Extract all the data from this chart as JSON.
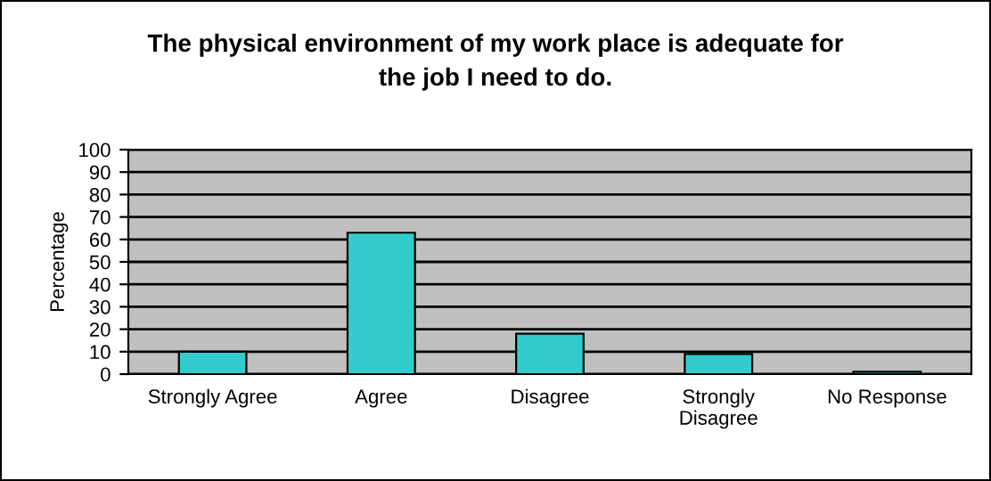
{
  "chart_data": {
    "type": "bar",
    "title": "The physical environment of my work place is adequate for\nthe job I need to do.",
    "ylabel": "Percentage",
    "categories": [
      "Strongly Agree",
      "Agree",
      "Disagree",
      "Strongly\nDisagree",
      "No Response"
    ],
    "values": [
      10,
      63,
      18,
      9,
      1
    ],
    "color": "#33cccc",
    "ylim": [
      0,
      100
    ],
    "yticks": [
      0,
      10,
      20,
      30,
      40,
      50,
      60,
      70,
      80,
      90,
      100
    ],
    "grid": "y"
  }
}
